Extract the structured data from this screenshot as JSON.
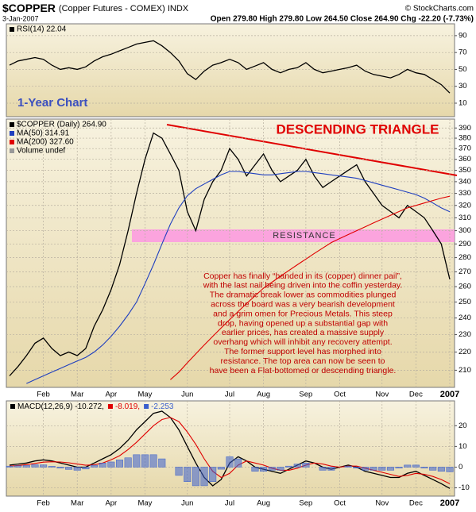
{
  "header": {
    "symbol": "$COPPER",
    "name": "(Copper Futures - COMEX) INDX",
    "credit": "© StockCharts.com",
    "date": "3-Jan-2007",
    "quote": "Open 279.80  High 279.80  Low 264.50  Close 264.90  Chg -22.20 (-7.73%)"
  },
  "chart_data": [
    {
      "type": "line",
      "annotation": "1-Year Chart",
      "ylim": [
        -6,
        104
      ],
      "yticks": [
        90,
        70,
        50,
        30,
        10
      ],
      "grid": true,
      "legend": "top-left",
      "series": [
        {
          "name": "RSI(14) 22.04",
          "color": "#000000",
          "values": [
            55,
            60,
            62,
            64,
            62,
            55,
            50,
            52,
            50,
            53,
            60,
            65,
            68,
            72,
            76,
            80,
            82,
            84,
            78,
            70,
            60,
            45,
            38,
            48,
            55,
            58,
            62,
            58,
            50,
            54,
            58,
            50,
            46,
            50,
            52,
            58,
            50,
            46,
            48,
            50,
            52,
            55,
            48,
            44,
            42,
            40,
            44,
            50,
            46,
            44,
            38,
            32,
            22.04
          ]
        }
      ]
    },
    {
      "type": "line",
      "log": true,
      "annotation": "DESCENDING TRIANGLE",
      "band_label": "RESISTANCE",
      "text_lines": [
        "Copper has finally “handed in its (copper) dinner pail”,",
        "with the last nail being driven into the coffin yesterday.",
        "The dramatic break lower as commodities plunged",
        "across the board was a very bearish development",
        "and a grim omen for Precious Metals. This steep",
        "drop, having opened up a substantial gap with",
        "earlier prices, has created a massive supply",
        "overhang which will inhibit any recovery attempt.",
        "The former support level has morphed into",
        "resistance. The top area can now be seen to",
        "have been a Flat-bottomed or descending triangle."
      ],
      "categories": [
        null,
        null,
        null,
        null,
        "Feb",
        null,
        null,
        null,
        "Mar",
        null,
        null,
        null,
        "Apr",
        null,
        null,
        null,
        "May",
        null,
        null,
        null,
        null,
        "Jun",
        null,
        null,
        null,
        null,
        "Jul",
        null,
        null,
        null,
        "Aug",
        null,
        null,
        null,
        null,
        "Sep",
        null,
        null,
        null,
        "Oct",
        null,
        null,
        null,
        null,
        "Nov",
        null,
        null,
        null,
        "Dec",
        null,
        null,
        null,
        "2007"
      ],
      "ylim": [
        201,
        399
      ],
      "yticks": [
        210,
        220,
        230,
        240,
        250,
        260,
        270,
        280,
        290,
        300,
        310,
        320,
        330,
        340,
        350,
        360,
        370,
        380,
        390
      ],
      "grid": true,
      "legend": "top-left",
      "legend_extra": "Volume undef",
      "series": [
        {
          "name": "$COPPER (Daily) 264.90",
          "color": "#000000",
          "values": [
            207,
            212,
            218,
            225,
            228,
            222,
            218,
            220,
            218,
            222,
            235,
            245,
            258,
            275,
            300,
            330,
            360,
            385,
            380,
            365,
            350,
            315,
            300,
            325,
            340,
            350,
            370,
            360,
            345,
            355,
            365,
            350,
            340,
            345,
            350,
            360,
            345,
            335,
            340,
            345,
            350,
            355,
            340,
            330,
            320,
            315,
            310,
            320,
            315,
            310,
            300,
            290,
            264.9
          ]
        },
        {
          "name": "MA(50) 314.91",
          "color": "#1f3fbf",
          "values": [
            null,
            null,
            203,
            205,
            207,
            209,
            211,
            213,
            215,
            217,
            220,
            224,
            229,
            235,
            242,
            250,
            262,
            275,
            290,
            305,
            318,
            328,
            334,
            338,
            342,
            346,
            349,
            349,
            348,
            347,
            346,
            346,
            347,
            348,
            349,
            349,
            348,
            347,
            346,
            345,
            344,
            343,
            341,
            339,
            337,
            335,
            333,
            331,
            329,
            326,
            322,
            318,
            314.91
          ]
        },
        {
          "name": "MA(200) 327.60",
          "color": "#e00000",
          "values": [
            null,
            null,
            null,
            null,
            null,
            null,
            null,
            null,
            null,
            null,
            null,
            null,
            null,
            null,
            null,
            null,
            null,
            null,
            null,
            205,
            209,
            214,
            219,
            224,
            229,
            234,
            239,
            244,
            249,
            254,
            259,
            263,
            267,
            271,
            275,
            279,
            283,
            287,
            291,
            294,
            297,
            300,
            303,
            306,
            309,
            312,
            315,
            318,
            320,
            322,
            324,
            326,
            327.6
          ]
        }
      ]
    },
    {
      "type": "line",
      "categories": [
        null,
        null,
        null,
        null,
        "Feb",
        null,
        null,
        null,
        "Mar",
        null,
        null,
        null,
        "Apr",
        null,
        null,
        null,
        "May",
        null,
        null,
        null,
        null,
        "Jun",
        null,
        null,
        null,
        null,
        "Jul",
        null,
        null,
        null,
        "Aug",
        null,
        null,
        null,
        null,
        "Sep",
        null,
        null,
        null,
        "Oct",
        null,
        null,
        null,
        null,
        "Nov",
        null,
        null,
        null,
        "Dec",
        null,
        null,
        null,
        "2007"
      ],
      "ylim": [
        -14,
        32
      ],
      "yticks": [
        20,
        10,
        0,
        -10
      ],
      "grid": true,
      "legend": "top-left",
      "series": [
        {
          "name": "MACD(12,26,9) -10.272,",
          "color": "#000000",
          "values": [
            1,
            1.5,
            2,
            3,
            3.5,
            3,
            2,
            1,
            0,
            0,
            2,
            4,
            6,
            9,
            13,
            18,
            22,
            26,
            27,
            24,
            18,
            10,
            2,
            -5,
            -9,
            -6,
            2,
            5,
            3,
            0,
            -1,
            -2,
            -3,
            -1,
            1,
            3,
            2,
            0,
            -1,
            0,
            1,
            0,
            -2,
            -3,
            -4,
            -5,
            -5,
            -3,
            -2,
            -4,
            -6,
            -8,
            -10.272
          ]
        },
        {
          "name": "-8.019,",
          "color": "#e00000",
          "values": [
            0.5,
            0.8,
            1.2,
            1.8,
            2.4,
            2.6,
            2.5,
            2.1,
            1.5,
            0.9,
            1.1,
            2,
            3.5,
            5.5,
            8.5,
            12,
            16,
            20,
            23,
            24,
            22,
            17,
            11,
            4,
            -2,
            -5,
            -3,
            1,
            3,
            2,
            1,
            -0.5,
            -1.5,
            -1.5,
            -0.5,
            1,
            2,
            1.5,
            0.5,
            0,
            0.5,
            0.5,
            -0.5,
            -1.5,
            -2.5,
            -3.5,
            -4.5,
            -4,
            -3,
            -3.5,
            -4.5,
            -6,
            -8.019
          ]
        },
        {
          "name": "-2.253",
          "color": "#3a5fcd",
          "mark": "bar",
          "values": [
            0.5,
            0.7,
            0.8,
            1.2,
            1.1,
            0.4,
            -0.5,
            -1.1,
            -1.5,
            -0.9,
            0.9,
            2,
            2.5,
            3.5,
            4.5,
            6,
            6,
            6,
            4,
            0,
            -4,
            -7,
            -9,
            -9,
            -7,
            -1,
            5,
            4,
            0,
            -2,
            -2,
            -1.5,
            -1.5,
            0.5,
            1.5,
            2,
            0,
            -1.5,
            -1.5,
            0,
            0.5,
            -0.5,
            -1.5,
            -1.5,
            -1.5,
            -1.5,
            -0.5,
            1,
            1,
            -0.5,
            -1.5,
            -2,
            -2.253
          ]
        }
      ]
    }
  ]
}
